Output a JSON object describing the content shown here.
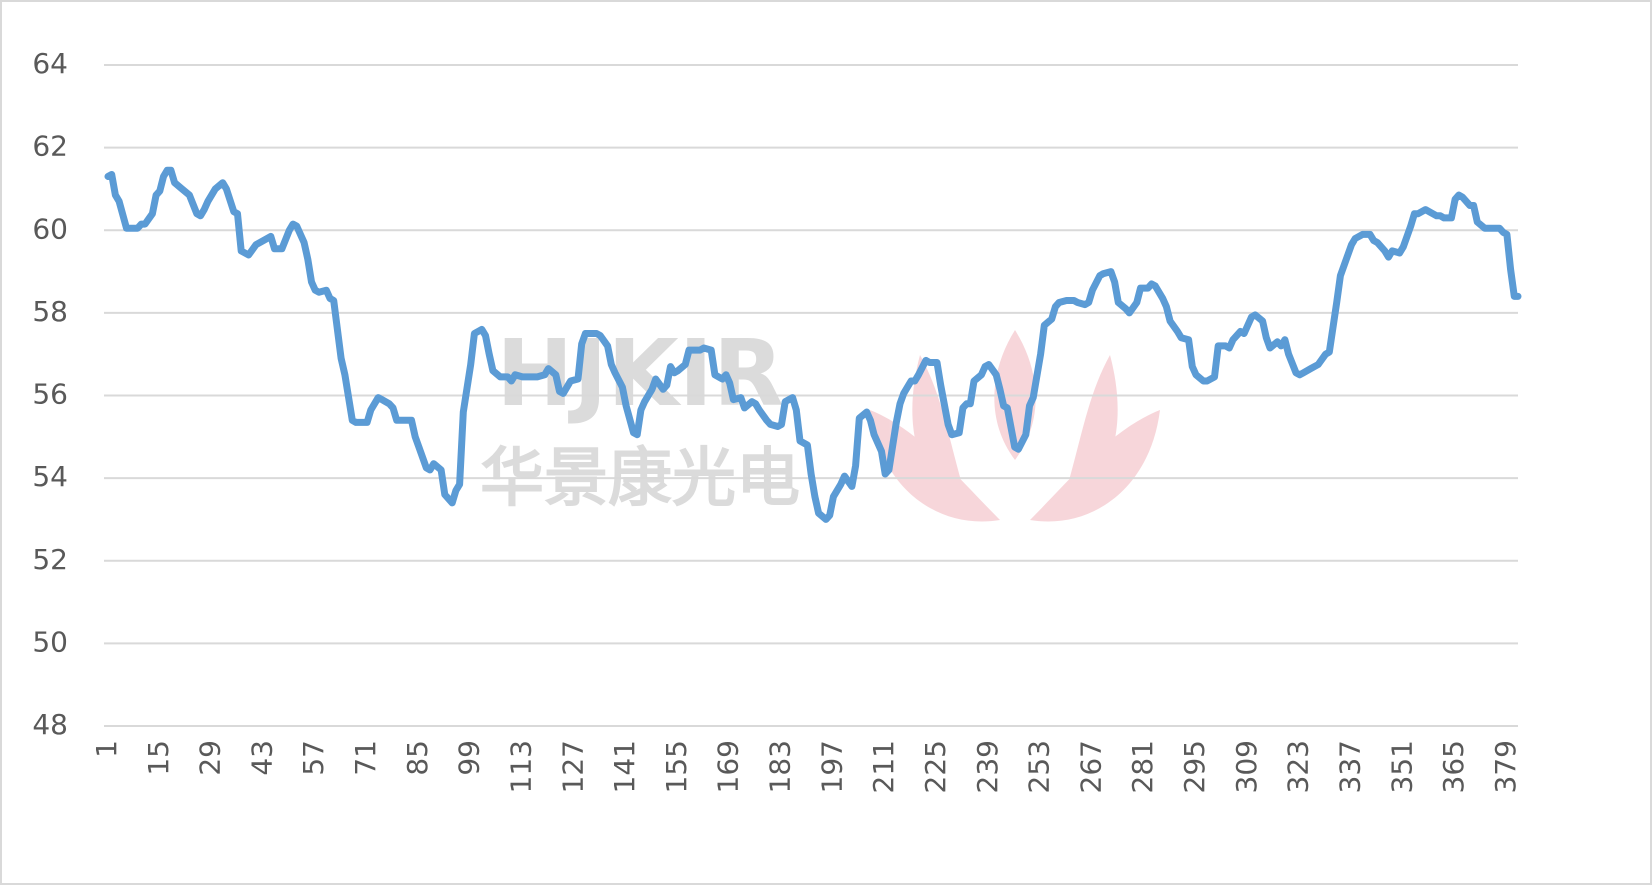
{
  "chart_data": {
    "type": "line",
    "x": [
      1,
      2,
      3,
      4,
      6,
      9,
      10,
      11,
      13,
      14,
      15,
      16,
      17,
      18,
      19,
      21,
      23,
      25,
      26,
      27,
      28,
      30,
      32,
      33,
      35,
      36,
      37,
      39,
      41,
      43,
      45,
      46,
      48,
      50,
      51,
      52,
      54,
      55,
      56,
      57,
      58,
      60,
      61,
      62,
      64,
      65,
      66,
      67,
      68,
      71,
      72,
      74,
      75,
      77,
      78,
      79,
      81,
      83,
      84,
      85,
      87,
      88,
      89,
      91,
      92,
      94,
      95,
      96,
      97,
      99,
      100,
      102,
      103,
      104,
      105,
      107,
      109,
      110,
      111,
      113,
      115,
      117,
      119,
      120,
      122,
      123,
      124,
      126,
      128,
      129,
      130,
      133,
      134,
      136,
      137,
      138,
      140,
      141,
      143,
      144,
      145,
      146,
      148,
      149,
      151,
      152,
      153,
      154,
      155,
      157,
      158,
      160,
      161,
      162,
      164,
      165,
      167,
      168,
      169,
      170,
      172,
      173,
      175,
      176,
      177,
      179,
      180,
      182,
      183,
      184,
      186,
      187,
      188,
      190,
      191,
      192,
      193,
      195,
      196,
      197,
      199,
      200,
      202,
      203,
      204,
      206,
      207,
      208,
      210,
      211,
      212,
      214,
      215,
      216,
      218,
      219,
      220,
      222,
      223,
      225,
      226,
      228,
      229,
      231,
      232,
      233,
      234,
      235,
      237,
      238,
      239,
      241,
      242,
      243,
      244,
      246,
      247,
      249,
      250,
      251,
      253,
      254,
      256,
      257,
      258,
      260,
      262,
      263,
      265,
      266,
      267,
      269,
      270,
      272,
      273,
      274,
      276,
      277,
      279,
      280,
      282,
      283,
      284,
      286,
      287,
      288,
      290,
      291,
      293,
      294,
      295,
      297,
      298,
      300,
      301,
      303,
      304,
      305,
      307,
      308,
      310,
      311,
      313,
      314,
      315,
      317,
      318,
      319,
      320,
      322,
      323,
      324,
      326,
      328,
      330,
      331,
      333,
      334,
      336,
      337,
      338,
      340,
      342,
      343,
      344,
      346,
      347,
      348,
      350,
      351,
      353,
      354,
      355,
      357,
      358,
      360,
      361,
      362,
      364,
      365,
      366,
      367,
      369,
      370,
      371,
      373,
      375,
      377,
      378,
      379,
      380,
      381,
      382
    ],
    "series": [
      {
        "color": "#5b9bd5",
        "values": [
          61.3,
          61.35,
          60.85,
          60.7,
          60.05,
          60.05,
          60.15,
          60.15,
          60.4,
          60.85,
          60.95,
          61.3,
          61.45,
          61.45,
          61.15,
          61.0,
          60.85,
          60.4,
          60.35,
          60.5,
          60.7,
          61.0,
          61.15,
          61.0,
          60.45,
          60.4,
          59.5,
          59.4,
          59.65,
          59.75,
          59.85,
          59.55,
          59.55,
          60.0,
          60.15,
          60.1,
          59.7,
          59.3,
          58.75,
          58.55,
          58.5,
          58.55,
          58.35,
          58.3,
          56.9,
          56.5,
          55.95,
          55.4,
          55.35,
          55.35,
          55.65,
          55.95,
          55.9,
          55.8,
          55.7,
          55.4,
          55.4,
          55.4,
          55.0,
          54.75,
          54.25,
          54.2,
          54.35,
          54.2,
          53.6,
          53.4,
          53.7,
          53.85,
          55.6,
          56.75,
          57.5,
          57.6,
          57.45,
          57.0,
          56.6,
          56.45,
          56.45,
          56.35,
          56.5,
          56.45,
          56.45,
          56.45,
          56.5,
          56.65,
          56.5,
          56.1,
          56.05,
          56.35,
          56.4,
          57.25,
          57.5,
          57.5,
          57.45,
          57.2,
          56.75,
          56.55,
          56.2,
          55.75,
          55.1,
          55.05,
          55.65,
          55.85,
          56.15,
          56.4,
          56.15,
          56.25,
          56.7,
          56.55,
          56.6,
          56.75,
          57.1,
          57.1,
          57.1,
          57.15,
          57.1,
          56.5,
          56.4,
          56.5,
          56.3,
          55.9,
          55.95,
          55.7,
          55.85,
          55.8,
          55.65,
          55.4,
          55.3,
          55.25,
          55.3,
          55.85,
          55.95,
          55.65,
          54.9,
          54.8,
          54.1,
          53.55,
          53.15,
          53.0,
          53.1,
          53.55,
          53.85,
          54.05,
          53.8,
          54.3,
          55.45,
          55.6,
          55.4,
          55.05,
          54.65,
          54.1,
          54.2,
          55.35,
          55.8,
          56.05,
          56.35,
          56.35,
          56.5,
          56.85,
          56.8,
          56.8,
          56.25,
          55.3,
          55.05,
          55.1,
          55.7,
          55.8,
          55.8,
          56.35,
          56.5,
          56.7,
          56.75,
          56.5,
          56.15,
          55.75,
          55.7,
          54.75,
          54.7,
          55.05,
          55.75,
          55.95,
          57.0,
          57.7,
          57.85,
          58.15,
          58.25,
          58.3,
          58.3,
          58.25,
          58.2,
          58.25,
          58.55,
          58.9,
          58.95,
          59.0,
          58.75,
          58.25,
          58.1,
          58.0,
          58.25,
          58.6,
          58.6,
          58.7,
          58.65,
          58.35,
          58.15,
          57.8,
          57.55,
          57.4,
          57.35,
          56.7,
          56.5,
          56.35,
          56.35,
          56.45,
          57.2,
          57.2,
          57.15,
          57.35,
          57.55,
          57.5,
          57.9,
          57.95,
          57.8,
          57.4,
          57.15,
          57.3,
          57.2,
          57.35,
          57.0,
          56.55,
          56.5,
          56.55,
          56.65,
          56.75,
          57.0,
          57.05,
          58.25,
          58.9,
          59.4,
          59.65,
          59.8,
          59.9,
          59.9,
          59.75,
          59.7,
          59.5,
          59.35,
          59.5,
          59.45,
          59.6,
          60.1,
          60.4,
          60.4,
          60.5,
          60.45,
          60.35,
          60.35,
          60.3,
          60.3,
          60.75,
          60.85,
          60.8,
          60.6,
          60.6,
          60.2,
          60.05,
          60.05,
          60.05,
          59.95,
          59.9,
          59.05,
          58.4,
          58.4
        ]
      }
    ],
    "xlim": [
      1,
      382
    ],
    "xticks": [
      1,
      15,
      29,
      43,
      57,
      71,
      85,
      99,
      113,
      127,
      141,
      155,
      169,
      183,
      197,
      211,
      225,
      239,
      253,
      267,
      281,
      295,
      309,
      323,
      337,
      351,
      365,
      379
    ],
    "ylim": [
      48,
      64
    ],
    "yticks": [
      48,
      50,
      52,
      54,
      56,
      58,
      60,
      62,
      64
    ],
    "grid": true,
    "watermark": {
      "brand": "HJKIR",
      "name": "华景康光电"
    }
  }
}
